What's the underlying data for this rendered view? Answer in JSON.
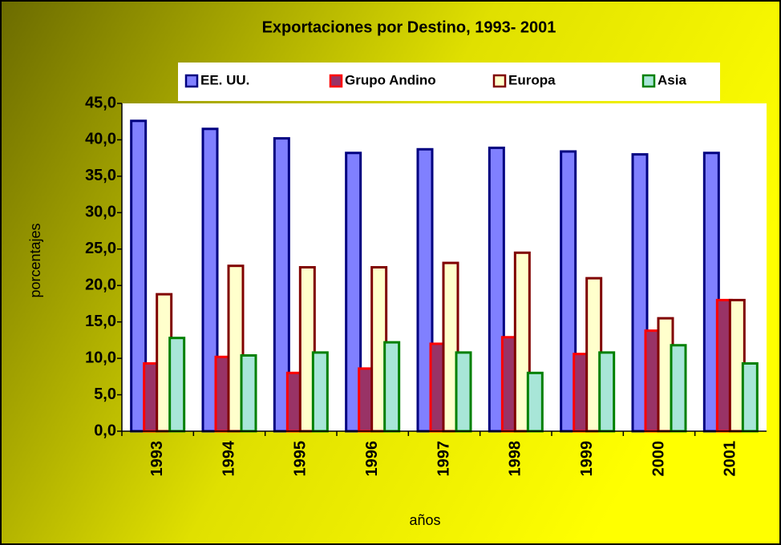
{
  "chart_data": {
    "type": "bar",
    "title": "Exportaciones por Destino, 1993- 2001",
    "x_label": "años",
    "y_label": "porcentajes",
    "categories": [
      "1993",
      "1994",
      "1995",
      "1996",
      "1997",
      "1998",
      "1999",
      "2000",
      "2001"
    ],
    "series": [
      {
        "name": "EE. UU.",
        "color": "#8080ff",
        "stroke": "#000080",
        "values": [
          42.6,
          41.5,
          40.2,
          38.2,
          38.7,
          38.9,
          38.4,
          38.0,
          38.2
        ]
      },
      {
        "name": "Grupo Andino",
        "color": "#993366",
        "stroke": "#ff0000",
        "values": [
          9.3,
          10.2,
          8.0,
          8.6,
          12.0,
          12.9,
          10.6,
          13.8,
          18.0
        ]
      },
      {
        "name": "Europa",
        "color": "#ffffcc",
        "stroke": "#800000",
        "values": [
          18.8,
          22.7,
          22.5,
          22.5,
          23.1,
          24.5,
          21.0,
          15.5,
          18.0
        ]
      },
      {
        "name": "Asia",
        "color": "#a8e6d8",
        "stroke": "#008000",
        "values": [
          12.8,
          10.4,
          10.8,
          12.2,
          10.8,
          8.0,
          10.8,
          11.8,
          9.3
        ]
      }
    ],
    "ylim": [
      0,
      45
    ],
    "yticks": [
      {
        "value": 0,
        "label": "0,0"
      },
      {
        "value": 5,
        "label": "5,0"
      },
      {
        "value": 10,
        "label": "10,0"
      },
      {
        "value": 15,
        "label": "15,0"
      },
      {
        "value": 20,
        "label": "20,0"
      },
      {
        "value": 25,
        "label": "25,0"
      },
      {
        "value": 30,
        "label": "30,0"
      },
      {
        "value": 35,
        "label": "35,0"
      },
      {
        "value": 40,
        "label": "40,0"
      },
      {
        "value": 45,
        "label": "45,0"
      }
    ],
    "legend": "top"
  }
}
